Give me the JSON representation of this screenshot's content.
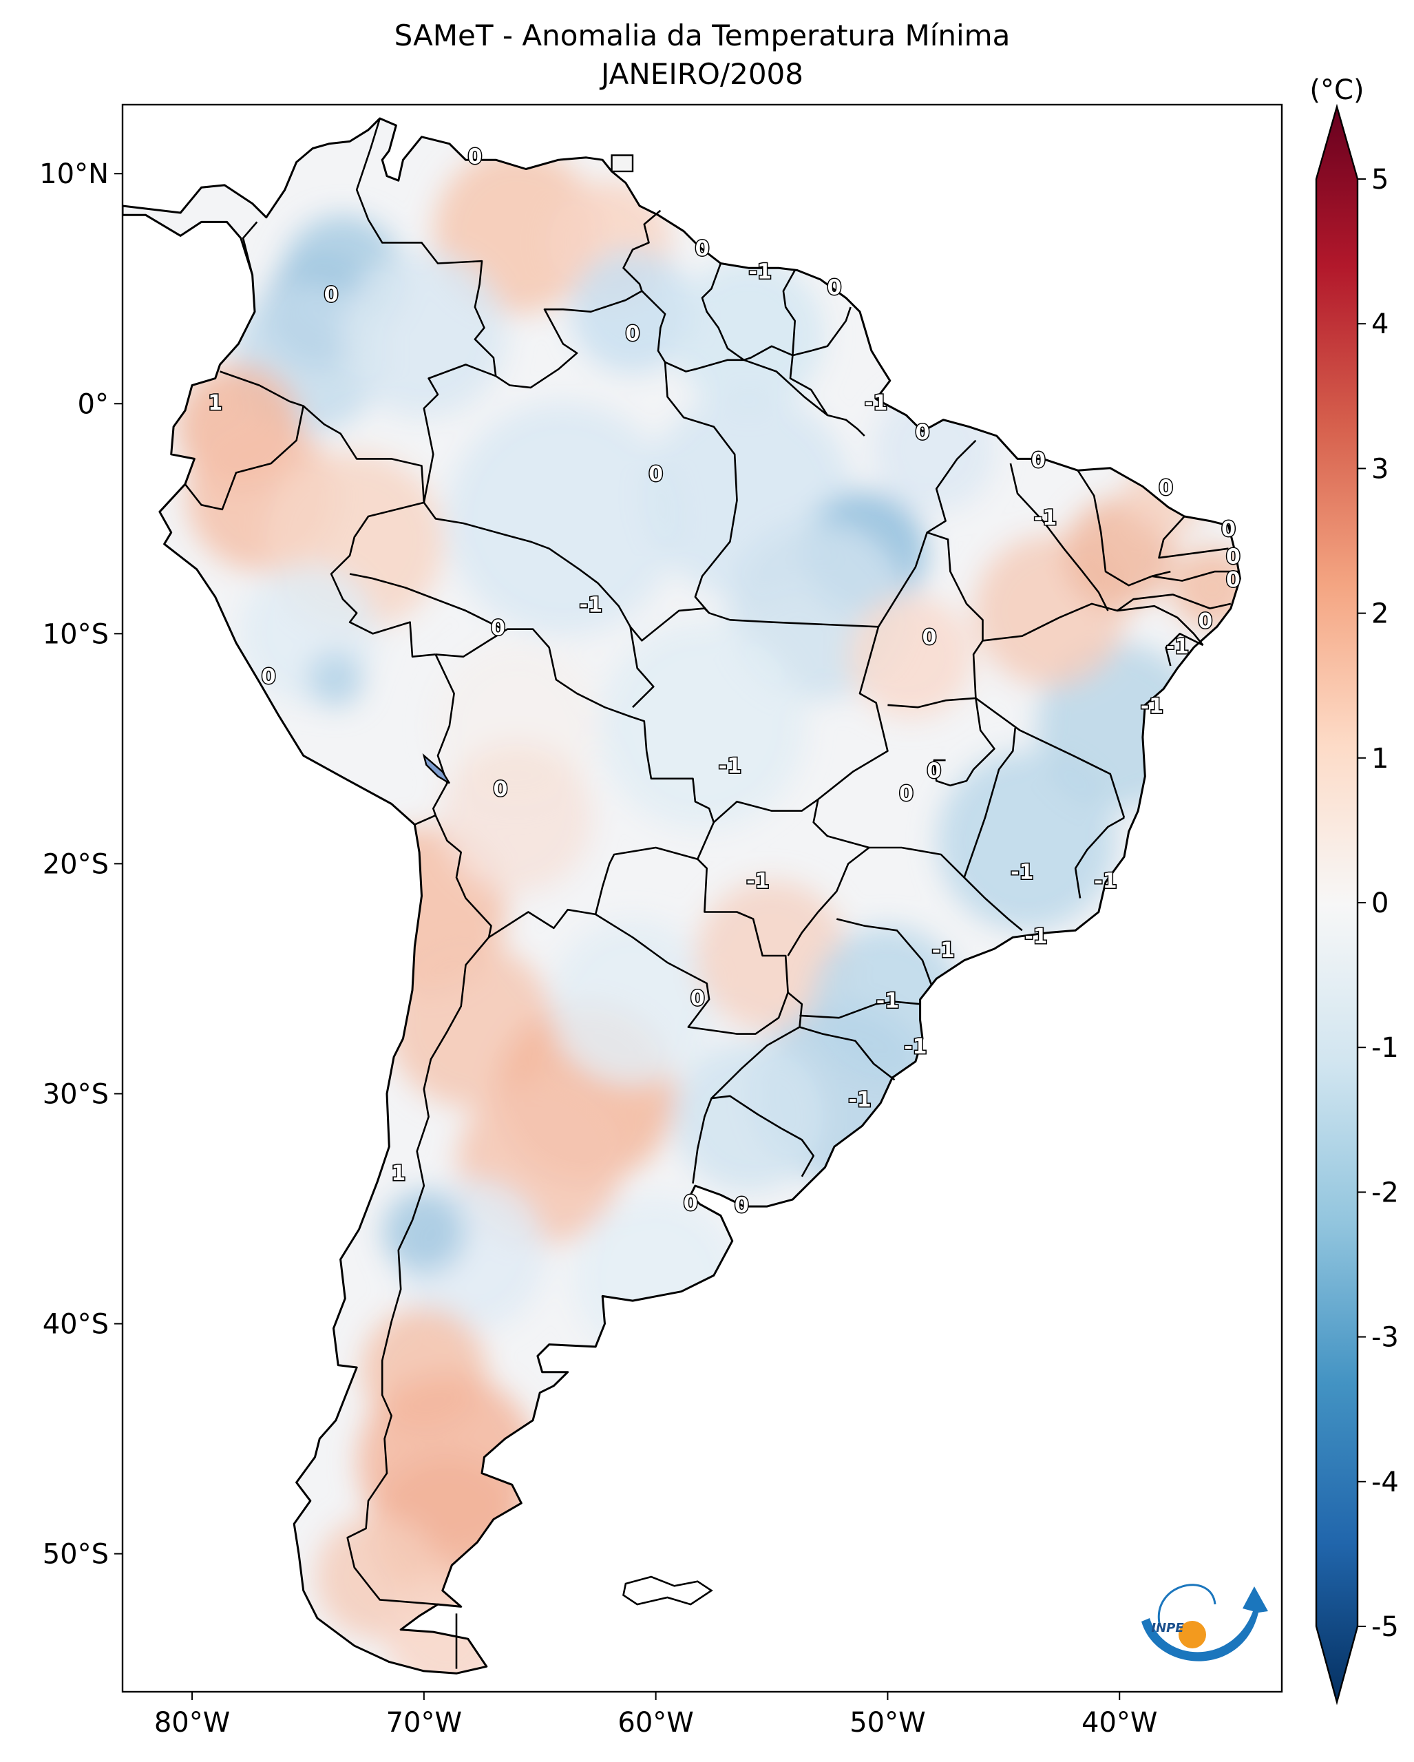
{
  "title": "SAMeT - Anomalia da Temperatura Mínima",
  "subtitle": "JANEIRO/2008",
  "map": {
    "lon_range": [
      -83,
      -33
    ],
    "lat_range": [
      -56,
      13
    ],
    "lon_ticks": [
      {
        "value": -80,
        "label": "80°W"
      },
      {
        "value": -70,
        "label": "70°W"
      },
      {
        "value": -60,
        "label": "60°W"
      },
      {
        "value": -50,
        "label": "50°W"
      },
      {
        "value": -40,
        "label": "40°W"
      }
    ],
    "lat_ticks": [
      {
        "value": 10,
        "label": "10°N"
      },
      {
        "value": 0,
        "label": "0°"
      },
      {
        "value": -10,
        "label": "10°S"
      },
      {
        "value": -20,
        "label": "20°S"
      },
      {
        "value": -30,
        "label": "30°S"
      },
      {
        "value": -40,
        "label": "40°S"
      },
      {
        "value": -50,
        "label": "50°S"
      }
    ],
    "contour_labels": [
      {
        "lon": -67.8,
        "lat": 10.7,
        "text": "0"
      },
      {
        "lon": -74.0,
        "lat": 4.7,
        "text": "0"
      },
      {
        "lon": -61.0,
        "lat": 3.0,
        "text": "0"
      },
      {
        "lon": -58.0,
        "lat": 6.7,
        "text": "0"
      },
      {
        "lon": -55.5,
        "lat": 5.7,
        "text": "-1"
      },
      {
        "lon": -52.3,
        "lat": 5.0,
        "text": "0"
      },
      {
        "lon": -50.5,
        "lat": 0.0,
        "text": "-1"
      },
      {
        "lon": -48.5,
        "lat": -1.3,
        "text": "0"
      },
      {
        "lon": -43.5,
        "lat": -2.5,
        "text": "0"
      },
      {
        "lon": -38.0,
        "lat": -3.7,
        "text": "0"
      },
      {
        "lon": -35.3,
        "lat": -5.5,
        "text": "0"
      },
      {
        "lon": -35.1,
        "lat": -6.7,
        "text": "0"
      },
      {
        "lon": -35.1,
        "lat": -7.7,
        "text": "0"
      },
      {
        "lon": -36.3,
        "lat": -9.5,
        "text": "0"
      },
      {
        "lon": -37.5,
        "lat": -10.6,
        "text": "-1"
      },
      {
        "lon": -38.6,
        "lat": -13.2,
        "text": "-1"
      },
      {
        "lon": -43.2,
        "lat": -5.0,
        "text": "-1"
      },
      {
        "lon": -60.0,
        "lat": -3.1,
        "text": "0"
      },
      {
        "lon": -66.8,
        "lat": -9.8,
        "text": "0"
      },
      {
        "lon": -62.8,
        "lat": -8.8,
        "text": "-1"
      },
      {
        "lon": -76.7,
        "lat": -11.9,
        "text": "0"
      },
      {
        "lon": -79.0,
        "lat": 0.0,
        "text": "1"
      },
      {
        "lon": -48.2,
        "lat": -10.2,
        "text": "0"
      },
      {
        "lon": -56.8,
        "lat": -15.8,
        "text": "-1"
      },
      {
        "lon": -48.0,
        "lat": -16.0,
        "text": "0"
      },
      {
        "lon": -49.2,
        "lat": -17.0,
        "text": "0"
      },
      {
        "lon": -66.7,
        "lat": -16.8,
        "text": "0"
      },
      {
        "lon": -55.6,
        "lat": -20.8,
        "text": "-1"
      },
      {
        "lon": -44.2,
        "lat": -20.4,
        "text": "-1"
      },
      {
        "lon": -40.6,
        "lat": -20.8,
        "text": "-1"
      },
      {
        "lon": -43.6,
        "lat": -23.2,
        "text": "-1"
      },
      {
        "lon": -47.6,
        "lat": -23.8,
        "text": "-1"
      },
      {
        "lon": -58.2,
        "lat": -25.9,
        "text": "0"
      },
      {
        "lon": -50.0,
        "lat": -26.0,
        "text": "-1"
      },
      {
        "lon": -48.8,
        "lat": -28.0,
        "text": "-1"
      },
      {
        "lon": -51.2,
        "lat": -30.3,
        "text": "-1"
      },
      {
        "lon": -71.1,
        "lat": -33.5,
        "text": "1"
      },
      {
        "lon": -58.5,
        "lat": -34.8,
        "text": "0"
      },
      {
        "lon": -56.3,
        "lat": -34.9,
        "text": "0"
      }
    ]
  },
  "colorbar": {
    "unit": "(°C)",
    "min": -5,
    "max": 5,
    "ticks": [
      {
        "value": 5,
        "label": "5"
      },
      {
        "value": 4,
        "label": "4"
      },
      {
        "value": 3,
        "label": "3"
      },
      {
        "value": 2,
        "label": "2"
      },
      {
        "value": 1,
        "label": "1"
      },
      {
        "value": 0,
        "label": "0"
      },
      {
        "value": -1,
        "label": "-1"
      },
      {
        "value": -2,
        "label": "-2"
      },
      {
        "value": -3,
        "label": "-3"
      },
      {
        "value": -4,
        "label": "-4"
      },
      {
        "value": -5,
        "label": "-5"
      }
    ],
    "colors": [
      "#053061",
      "#2166ac",
      "#4393c3",
      "#92c5de",
      "#d1e5f0",
      "#f7f7f7",
      "#fddbc7",
      "#f4a582",
      "#d6604d",
      "#b2182b",
      "#67001f"
    ]
  },
  "logo": {
    "text": "INPE"
  }
}
